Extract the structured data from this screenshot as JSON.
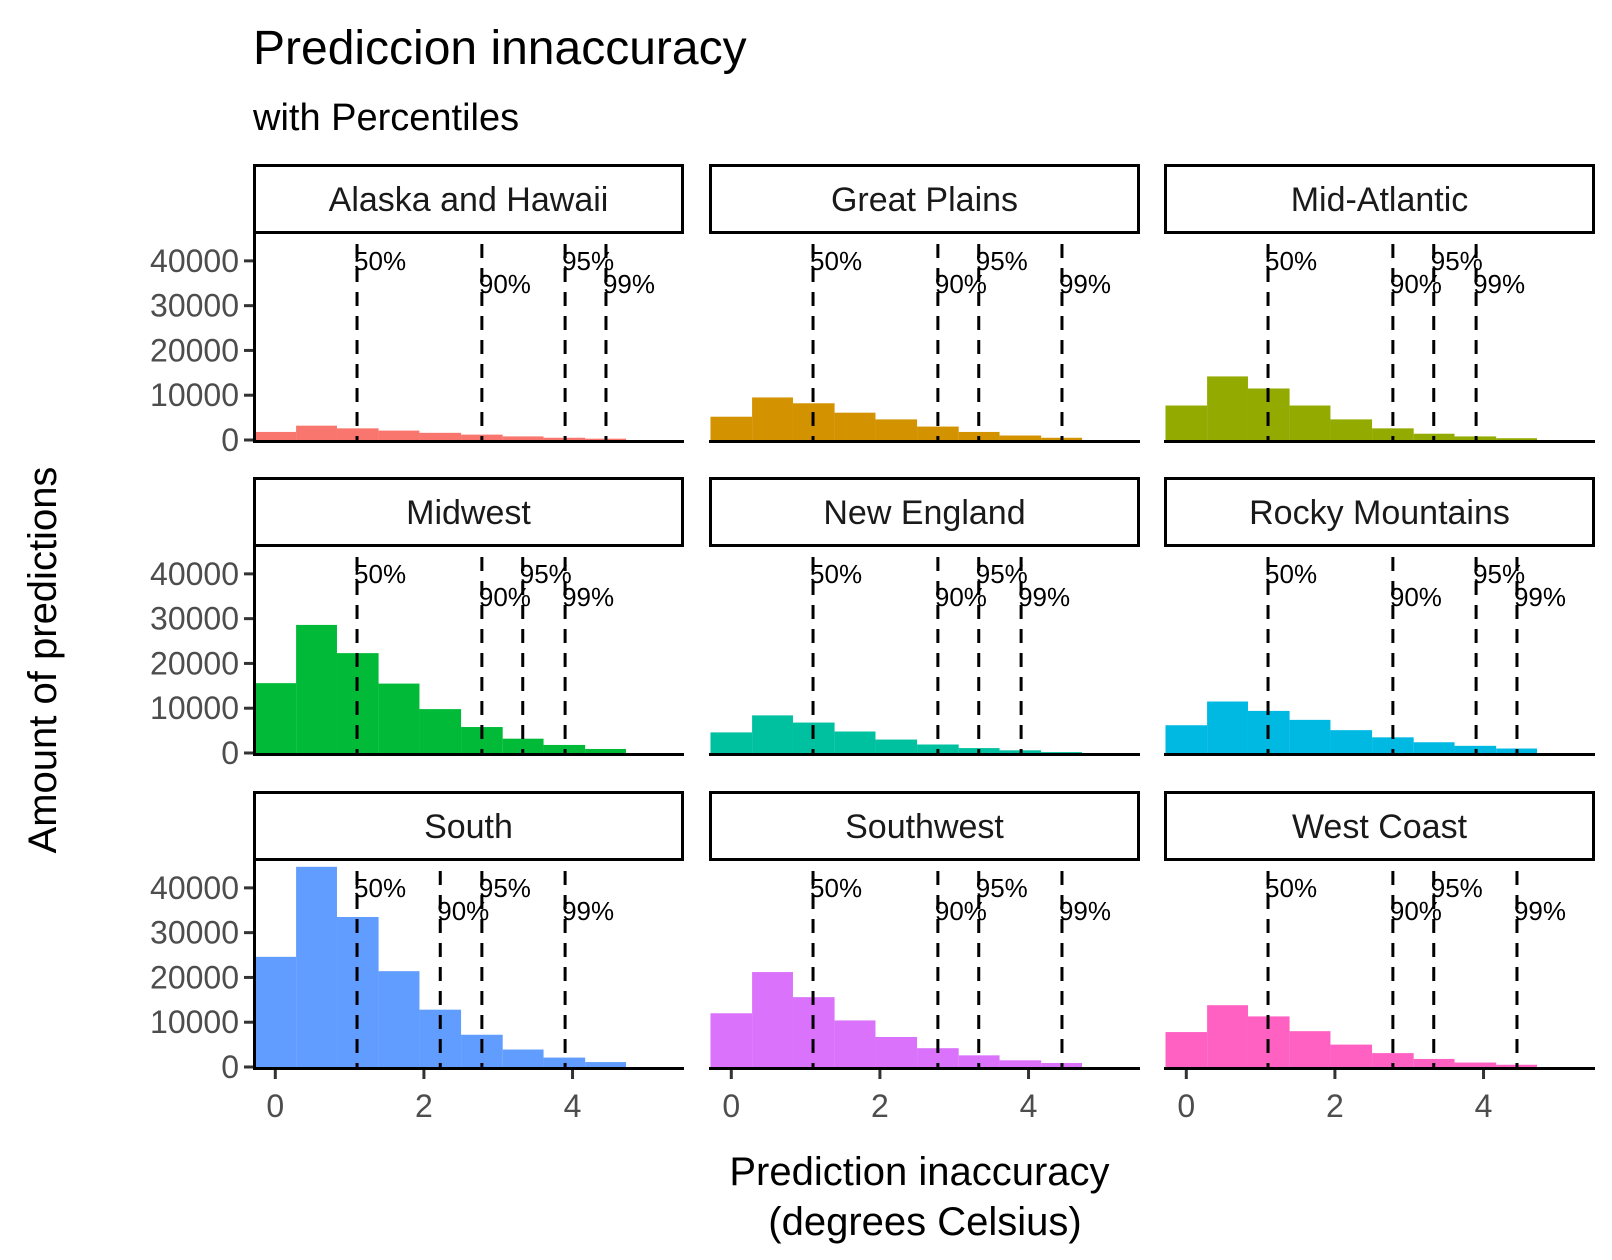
{
  "chart_data": {
    "type": "bar",
    "title": "Prediccion innaccuracy",
    "subtitle": "with Percentiles",
    "xlabel": [
      "Prediction inaccuracy",
      "(degrees Celsius)"
    ],
    "ylabel": "Amount of predictions",
    "xlim": [
      -0.3,
      5.5
    ],
    "ylim": [
      0,
      46000
    ],
    "x_ticks": [
      0,
      2,
      4
    ],
    "x_tick_labels": [
      "0",
      "2",
      "4"
    ],
    "y_ticks": [
      0,
      10000,
      20000,
      30000,
      40000
    ],
    "y_tick_labels": [
      "0",
      "10000",
      "20000",
      "30000",
      "40000"
    ],
    "bin_edges": [
      -0.28,
      0.28,
      0.83,
      1.39,
      1.94,
      2.5,
      3.06,
      3.61,
      4.17,
      4.72
    ],
    "grid": false,
    "legend": "none",
    "panels": [
      {
        "name": "Alaska and Hawaii",
        "color": "#F8766D",
        "values": [
          1800,
          3200,
          2600,
          2100,
          1600,
          1200,
          800,
          500,
          300
        ],
        "percentiles": [
          {
            "label": "50%",
            "x": 1.1
          },
          {
            "label": "90%",
            "x": 2.78
          },
          {
            "label": "95%",
            "x": 3.9
          },
          {
            "label": "99%",
            "x": 4.45
          }
        ]
      },
      {
        "name": "Great Plains",
        "color": "#D39200",
        "values": [
          5200,
          9500,
          8200,
          6100,
          4600,
          3000,
          1800,
          1000,
          500
        ],
        "percentiles": [
          {
            "label": "50%",
            "x": 1.1
          },
          {
            "label": "90%",
            "x": 2.78
          },
          {
            "label": "95%",
            "x": 3.33
          },
          {
            "label": "99%",
            "x": 4.45
          }
        ]
      },
      {
        "name": "Mid-Atlantic",
        "color": "#93AA00",
        "values": [
          7700,
          14200,
          11500,
          7700,
          4600,
          2600,
          1400,
          800,
          400
        ],
        "percentiles": [
          {
            "label": "50%",
            "x": 1.1
          },
          {
            "label": "90%",
            "x": 2.78
          },
          {
            "label": "95%",
            "x": 3.33
          },
          {
            "label": "99%",
            "x": 3.9
          }
        ]
      },
      {
        "name": "Midwest",
        "color": "#00BA38",
        "values": [
          15600,
          28600,
          22300,
          15500,
          9800,
          5800,
          3200,
          1800,
          900
        ],
        "percentiles": [
          {
            "label": "50%",
            "x": 1.1
          },
          {
            "label": "90%",
            "x": 2.78
          },
          {
            "label": "95%",
            "x": 3.33
          },
          {
            "label": "99%",
            "x": 3.9
          }
        ]
      },
      {
        "name": "New England",
        "color": "#00C19F",
        "values": [
          4600,
          8400,
          6800,
          4800,
          3000,
          1900,
          1100,
          600,
          200
        ],
        "percentiles": [
          {
            "label": "50%",
            "x": 1.1
          },
          {
            "label": "90%",
            "x": 2.78
          },
          {
            "label": "95%",
            "x": 3.33
          },
          {
            "label": "99%",
            "x": 3.9
          }
        ]
      },
      {
        "name": "Rocky Mountains",
        "color": "#00B9E3",
        "values": [
          6200,
          11500,
          9400,
          7400,
          5100,
          3500,
          2400,
          1600,
          1000
        ],
        "percentiles": [
          {
            "label": "50%",
            "x": 1.1
          },
          {
            "label": "90%",
            "x": 2.78
          },
          {
            "label": "95%",
            "x": 3.9
          },
          {
            "label": "99%",
            "x": 4.45
          }
        ]
      },
      {
        "name": "South",
        "color": "#619CFF",
        "values": [
          24600,
          44700,
          33500,
          21400,
          12800,
          7200,
          3900,
          2100,
          1100
        ],
        "percentiles": [
          {
            "label": "50%",
            "x": 1.1
          },
          {
            "label": "90%",
            "x": 2.22
          },
          {
            "label": "95%",
            "x": 2.78
          },
          {
            "label": "99%",
            "x": 3.9
          }
        ]
      },
      {
        "name": "Southwest",
        "color": "#DB72FB",
        "values": [
          12000,
          21200,
          15600,
          10400,
          6700,
          4200,
          2600,
          1500,
          900
        ],
        "percentiles": [
          {
            "label": "50%",
            "x": 1.1
          },
          {
            "label": "90%",
            "x": 2.78
          },
          {
            "label": "95%",
            "x": 3.33
          },
          {
            "label": "99%",
            "x": 4.45
          }
        ]
      },
      {
        "name": "West Coast",
        "color": "#FF61C3",
        "values": [
          7800,
          13800,
          11300,
          8000,
          5000,
          3100,
          1800,
          1000,
          500
        ],
        "percentiles": [
          {
            "label": "50%",
            "x": 1.1
          },
          {
            "label": "90%",
            "x": 2.78
          },
          {
            "label": "95%",
            "x": 3.33
          },
          {
            "label": "99%",
            "x": 4.45
          }
        ]
      }
    ]
  }
}
